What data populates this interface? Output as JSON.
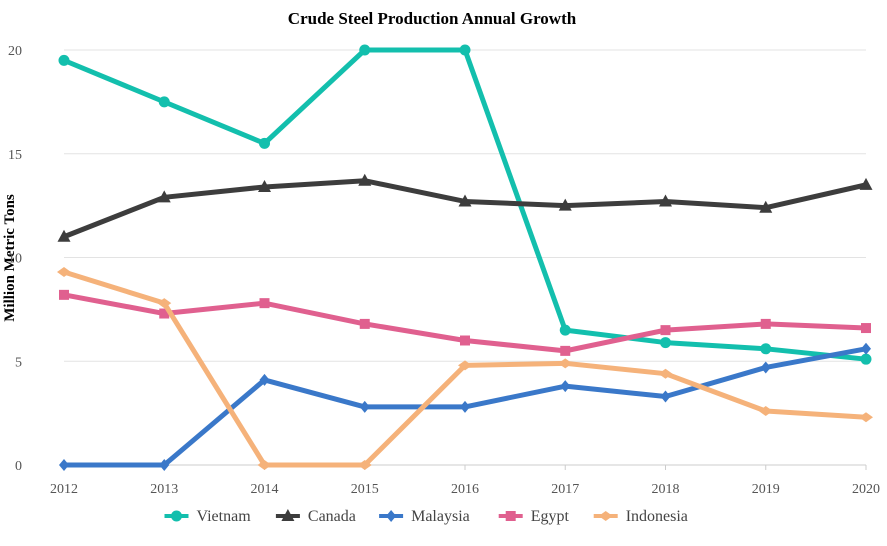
{
  "chart_data": {
    "type": "line",
    "title": "Crude Steel Production Annual Growth",
    "xlabel": "",
    "ylabel": "Million Metric Tons",
    "categories": [
      "2012",
      "2013",
      "2014",
      "2015",
      "2016",
      "2017",
      "2018",
      "2019",
      "2020"
    ],
    "ylim": [
      0,
      20
    ],
    "yticks": [
      0,
      5,
      10,
      15,
      20
    ],
    "grid": true,
    "legend_position": "bottom",
    "series": [
      {
        "name": "Vietnam",
        "color": "#13bfad",
        "marker": "circle",
        "values": [
          19.5,
          17.5,
          15.5,
          20,
          20,
          6.5,
          5.9,
          5.6,
          5.1
        ]
      },
      {
        "name": "Canada",
        "color": "#3d3d3d",
        "marker": "triangle",
        "values": [
          11,
          12.9,
          13.4,
          13.7,
          12.7,
          12.5,
          12.7,
          12.4,
          13.5
        ]
      },
      {
        "name": "Malaysia",
        "color": "#3a78c9",
        "marker": "diamond",
        "values": [
          0,
          0,
          4.1,
          2.8,
          2.8,
          3.8,
          3.3,
          4.7,
          5.6
        ]
      },
      {
        "name": "Egypt",
        "color": "#e0608f",
        "marker": "square",
        "values": [
          8.2,
          7.3,
          7.8,
          6.8,
          6.0,
          5.5,
          6.5,
          6.8,
          6.6
        ]
      },
      {
        "name": "Indonesia",
        "color": "#f5b27a",
        "marker": "diamond-wide",
        "values": [
          9.3,
          7.8,
          0,
          0,
          4.8,
          4.9,
          4.4,
          2.6,
          2.3
        ]
      }
    ]
  }
}
